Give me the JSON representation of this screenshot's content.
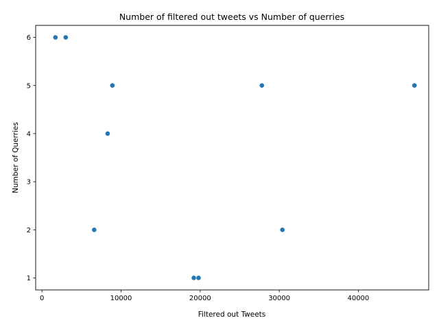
{
  "chart_data": {
    "type": "scatter",
    "title": "Number of filtered out tweets vs Number of querries",
    "xlabel": "Filtered out Tweets",
    "ylabel": "Number of Querries",
    "xlim": [
      -800,
      48900
    ],
    "ylim": [
      0.75,
      6.25
    ],
    "xticks": [
      0,
      10000,
      20000,
      30000,
      40000
    ],
    "yticks": [
      1,
      2,
      3,
      4,
      5,
      6
    ],
    "grid": false,
    "marker_color": "#1f77b4",
    "points": [
      {
        "x": 1700,
        "y": 6
      },
      {
        "x": 3000,
        "y": 6
      },
      {
        "x": 6600,
        "y": 2
      },
      {
        "x": 8300,
        "y": 4
      },
      {
        "x": 8900,
        "y": 5
      },
      {
        "x": 19200,
        "y": 1
      },
      {
        "x": 19800,
        "y": 1
      },
      {
        "x": 27800,
        "y": 5
      },
      {
        "x": 30400,
        "y": 2
      },
      {
        "x": 47100,
        "y": 5
      }
    ]
  }
}
